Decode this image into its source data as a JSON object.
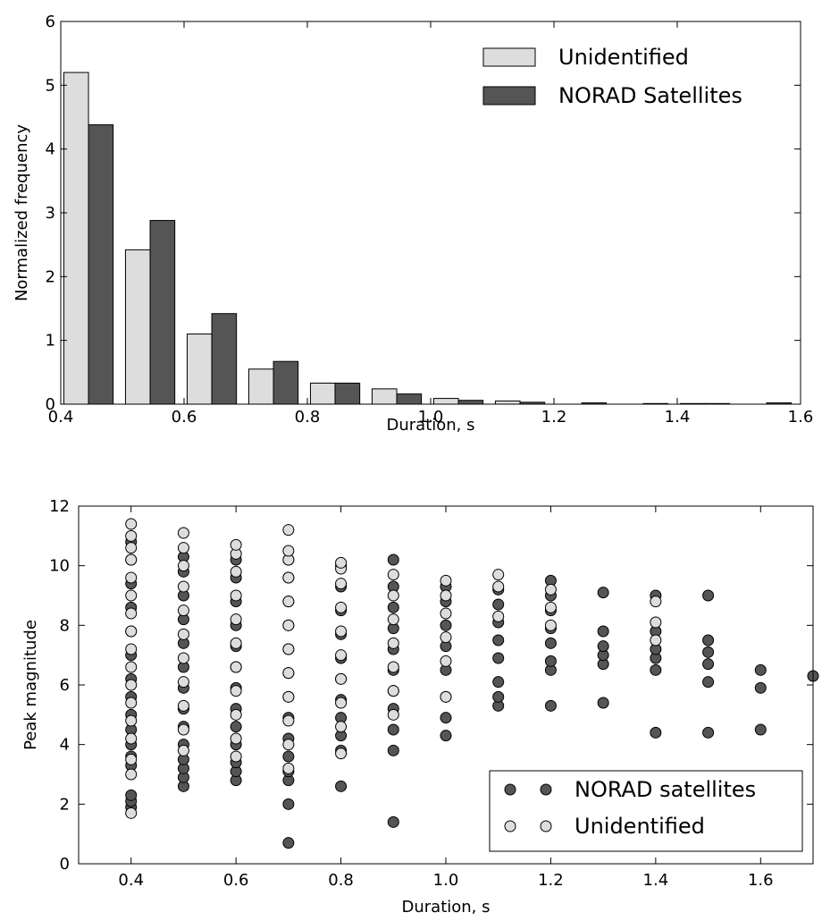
{
  "colors": {
    "unidentified": "#dddddd",
    "norad": "#555555",
    "edge": "#000000"
  },
  "chart_data": [
    {
      "type": "bar",
      "xlabel": "Duration, s",
      "ylabel": "Normalized frequency",
      "xlim": [
        0.4,
        1.6
      ],
      "ylim": [
        0,
        6
      ],
      "xticks": [
        "0.4",
        "0.6",
        "0.8",
        "1.0",
        "1.2",
        "1.4",
        "1.6"
      ],
      "yticks": [
        "0",
        "1",
        "2",
        "3",
        "4",
        "5",
        "6"
      ],
      "bin_starts": [
        0.4,
        0.5,
        0.6,
        0.7,
        0.8,
        0.9,
        1.0,
        1.1,
        1.2,
        1.3,
        1.4,
        1.5
      ],
      "bin_width": 0.1,
      "legend_position": "top-right",
      "series": [
        {
          "name": "Unidentified",
          "values": [
            5.2,
            2.42,
            1.1,
            0.55,
            0.33,
            0.24,
            0.09,
            0.05,
            0.0,
            0.0,
            0.01,
            0.0
          ]
        },
        {
          "name": "NORAD Satellites",
          "values": [
            4.38,
            2.88,
            1.42,
            0.67,
            0.33,
            0.16,
            0.06,
            0.03,
            0.02,
            0.01,
            0.01,
            0.02
          ]
        }
      ]
    },
    {
      "type": "scatter",
      "xlabel": "Duration, s",
      "ylabel": "Peak magnitude",
      "xlim": [
        0.3,
        1.7
      ],
      "ylim": [
        0,
        12
      ],
      "xticks": [
        "0.4",
        "0.6",
        "0.8",
        "1.0",
        "1.2",
        "1.4",
        "1.6"
      ],
      "yticks": [
        "0",
        "2",
        "4",
        "6",
        "8",
        "10",
        "12"
      ],
      "legend_position": "bottom-right",
      "series": [
        {
          "name": "NORAD satellites",
          "points": [
            [
              0.4,
              1.9
            ],
            [
              0.4,
              2.1
            ],
            [
              0.4,
              2.3
            ],
            [
              0.4,
              3.3
            ],
            [
              0.4,
              3.6
            ],
            [
              0.4,
              4.0
            ],
            [
              0.4,
              4.5
            ],
            [
              0.4,
              5.0
            ],
            [
              0.4,
              5.6
            ],
            [
              0.4,
              6.2
            ],
            [
              0.4,
              7.0
            ],
            [
              0.4,
              7.8
            ],
            [
              0.4,
              8.6
            ],
            [
              0.4,
              9.4
            ],
            [
              0.4,
              10.2
            ],
            [
              0.4,
              10.8
            ],
            [
              0.5,
              2.6
            ],
            [
              0.5,
              2.9
            ],
            [
              0.5,
              3.2
            ],
            [
              0.5,
              3.5
            ],
            [
              0.5,
              4.0
            ],
            [
              0.5,
              4.6
            ],
            [
              0.5,
              5.2
            ],
            [
              0.5,
              5.9
            ],
            [
              0.5,
              6.6
            ],
            [
              0.5,
              7.4
            ],
            [
              0.5,
              8.2
            ],
            [
              0.5,
              9.0
            ],
            [
              0.5,
              9.8
            ],
            [
              0.5,
              10.3
            ],
            [
              0.6,
              2.8
            ],
            [
              0.6,
              3.1
            ],
            [
              0.6,
              3.4
            ],
            [
              0.6,
              4.0
            ],
            [
              0.6,
              4.6
            ],
            [
              0.6,
              5.2
            ],
            [
              0.6,
              5.9
            ],
            [
              0.6,
              6.6
            ],
            [
              0.6,
              7.3
            ],
            [
              0.6,
              8.0
            ],
            [
              0.6,
              8.8
            ],
            [
              0.6,
              9.6
            ],
            [
              0.6,
              10.2
            ],
            [
              0.7,
              0.7
            ],
            [
              0.7,
              2.0
            ],
            [
              0.7,
              2.8
            ],
            [
              0.7,
              3.1
            ],
            [
              0.7,
              3.6
            ],
            [
              0.7,
              4.2
            ],
            [
              0.7,
              4.9
            ],
            [
              0.7,
              5.6
            ],
            [
              0.7,
              6.4
            ],
            [
              0.7,
              7.2
            ],
            [
              0.7,
              8.0
            ],
            [
              0.7,
              8.8
            ],
            [
              0.7,
              9.6
            ],
            [
              0.7,
              10.2
            ],
            [
              0.8,
              2.6
            ],
            [
              0.8,
              3.8
            ],
            [
              0.8,
              4.3
            ],
            [
              0.8,
              4.9
            ],
            [
              0.8,
              5.5
            ],
            [
              0.8,
              6.2
            ],
            [
              0.8,
              6.9
            ],
            [
              0.8,
              7.7
            ],
            [
              0.8,
              8.5
            ],
            [
              0.8,
              9.3
            ],
            [
              0.8,
              10.0
            ],
            [
              0.9,
              1.4
            ],
            [
              0.9,
              3.8
            ],
            [
              0.9,
              4.5
            ],
            [
              0.9,
              5.2
            ],
            [
              0.9,
              5.8
            ],
            [
              0.9,
              6.5
            ],
            [
              0.9,
              7.2
            ],
            [
              0.9,
              7.9
            ],
            [
              0.9,
              8.6
            ],
            [
              0.9,
              9.3
            ],
            [
              0.9,
              10.2
            ],
            [
              1.0,
              4.3
            ],
            [
              1.0,
              4.9
            ],
            [
              1.0,
              5.6
            ],
            [
              1.0,
              6.5
            ],
            [
              1.0,
              7.3
            ],
            [
              1.0,
              8.0
            ],
            [
              1.0,
              8.8
            ],
            [
              1.0,
              9.3
            ],
            [
              1.1,
              5.3
            ],
            [
              1.1,
              5.6
            ],
            [
              1.1,
              6.1
            ],
            [
              1.1,
              6.9
            ],
            [
              1.1,
              7.5
            ],
            [
              1.1,
              8.1
            ],
            [
              1.1,
              8.7
            ],
            [
              1.1,
              9.2
            ],
            [
              1.2,
              5.3
            ],
            [
              1.2,
              6.5
            ],
            [
              1.2,
              6.8
            ],
            [
              1.2,
              7.4
            ],
            [
              1.2,
              7.9
            ],
            [
              1.2,
              8.5
            ],
            [
              1.2,
              9.0
            ],
            [
              1.2,
              9.5
            ],
            [
              1.3,
              5.4
            ],
            [
              1.3,
              6.7
            ],
            [
              1.3,
              7.0
            ],
            [
              1.3,
              7.3
            ],
            [
              1.3,
              7.8
            ],
            [
              1.3,
              9.1
            ],
            [
              1.4,
              4.4
            ],
            [
              1.4,
              6.5
            ],
            [
              1.4,
              6.9
            ],
            [
              1.4,
              7.2
            ],
            [
              1.4,
              7.8
            ],
            [
              1.4,
              9.0
            ],
            [
              1.5,
              4.4
            ],
            [
              1.5,
              6.1
            ],
            [
              1.5,
              6.7
            ],
            [
              1.5,
              7.1
            ],
            [
              1.5,
              7.5
            ],
            [
              1.5,
              9.0
            ],
            [
              1.6,
              4.5
            ],
            [
              1.6,
              5.9
            ],
            [
              1.6,
              6.5
            ],
            [
              1.7,
              6.3
            ]
          ]
        },
        {
          "name": "Unidentified",
          "points": [
            [
              0.4,
              1.7
            ],
            [
              0.4,
              3.0
            ],
            [
              0.4,
              3.5
            ],
            [
              0.4,
              4.2
            ],
            [
              0.4,
              4.8
            ],
            [
              0.4,
              5.4
            ],
            [
              0.4,
              6.0
            ],
            [
              0.4,
              6.6
            ],
            [
              0.4,
              7.2
            ],
            [
              0.4,
              7.8
            ],
            [
              0.4,
              8.4
            ],
            [
              0.4,
              9.0
            ],
            [
              0.4,
              9.6
            ],
            [
              0.4,
              10.2
            ],
            [
              0.4,
              10.6
            ],
            [
              0.4,
              11.0
            ],
            [
              0.4,
              11.4
            ],
            [
              0.5,
              3.8
            ],
            [
              0.5,
              4.5
            ],
            [
              0.5,
              5.3
            ],
            [
              0.5,
              6.1
            ],
            [
              0.5,
              6.9
            ],
            [
              0.5,
              7.7
            ],
            [
              0.5,
              8.5
            ],
            [
              0.5,
              9.3
            ],
            [
              0.5,
              10.0
            ],
            [
              0.5,
              10.6
            ],
            [
              0.5,
              11.1
            ],
            [
              0.6,
              3.6
            ],
            [
              0.6,
              4.2
            ],
            [
              0.6,
              5.0
            ],
            [
              0.6,
              5.8
            ],
            [
              0.6,
              6.6
            ],
            [
              0.6,
              7.4
            ],
            [
              0.6,
              8.2
            ],
            [
              0.6,
              9.0
            ],
            [
              0.6,
              9.8
            ],
            [
              0.6,
              10.4
            ],
            [
              0.6,
              10.7
            ],
            [
              0.7,
              3.2
            ],
            [
              0.7,
              4.0
            ],
            [
              0.7,
              4.8
            ],
            [
              0.7,
              5.6
            ],
            [
              0.7,
              6.4
            ],
            [
              0.7,
              7.2
            ],
            [
              0.7,
              8.0
            ],
            [
              0.7,
              8.8
            ],
            [
              0.7,
              9.6
            ],
            [
              0.7,
              10.2
            ],
            [
              0.7,
              10.5
            ],
            [
              0.7,
              11.2
            ],
            [
              0.8,
              3.7
            ],
            [
              0.8,
              4.6
            ],
            [
              0.8,
              5.4
            ],
            [
              0.8,
              6.2
            ],
            [
              0.8,
              7.0
            ],
            [
              0.8,
              7.8
            ],
            [
              0.8,
              8.6
            ],
            [
              0.8,
              9.4
            ],
            [
              0.8,
              9.9
            ],
            [
              0.8,
              10.1
            ],
            [
              0.9,
              5.0
            ],
            [
              0.9,
              5.8
            ],
            [
              0.9,
              6.6
            ],
            [
              0.9,
              7.4
            ],
            [
              0.9,
              8.2
            ],
            [
              0.9,
              9.0
            ],
            [
              0.9,
              9.7
            ],
            [
              1.0,
              5.6
            ],
            [
              1.0,
              6.8
            ],
            [
              1.0,
              7.6
            ],
            [
              1.0,
              8.4
            ],
            [
              1.0,
              9.0
            ],
            [
              1.0,
              9.5
            ],
            [
              1.1,
              8.3
            ],
            [
              1.1,
              9.3
            ],
            [
              1.1,
              9.7
            ],
            [
              1.2,
              8.0
            ],
            [
              1.2,
              8.6
            ],
            [
              1.2,
              9.2
            ],
            [
              1.4,
              7.5
            ],
            [
              1.4,
              8.1
            ],
            [
              1.4,
              8.8
            ]
          ]
        }
      ]
    }
  ]
}
